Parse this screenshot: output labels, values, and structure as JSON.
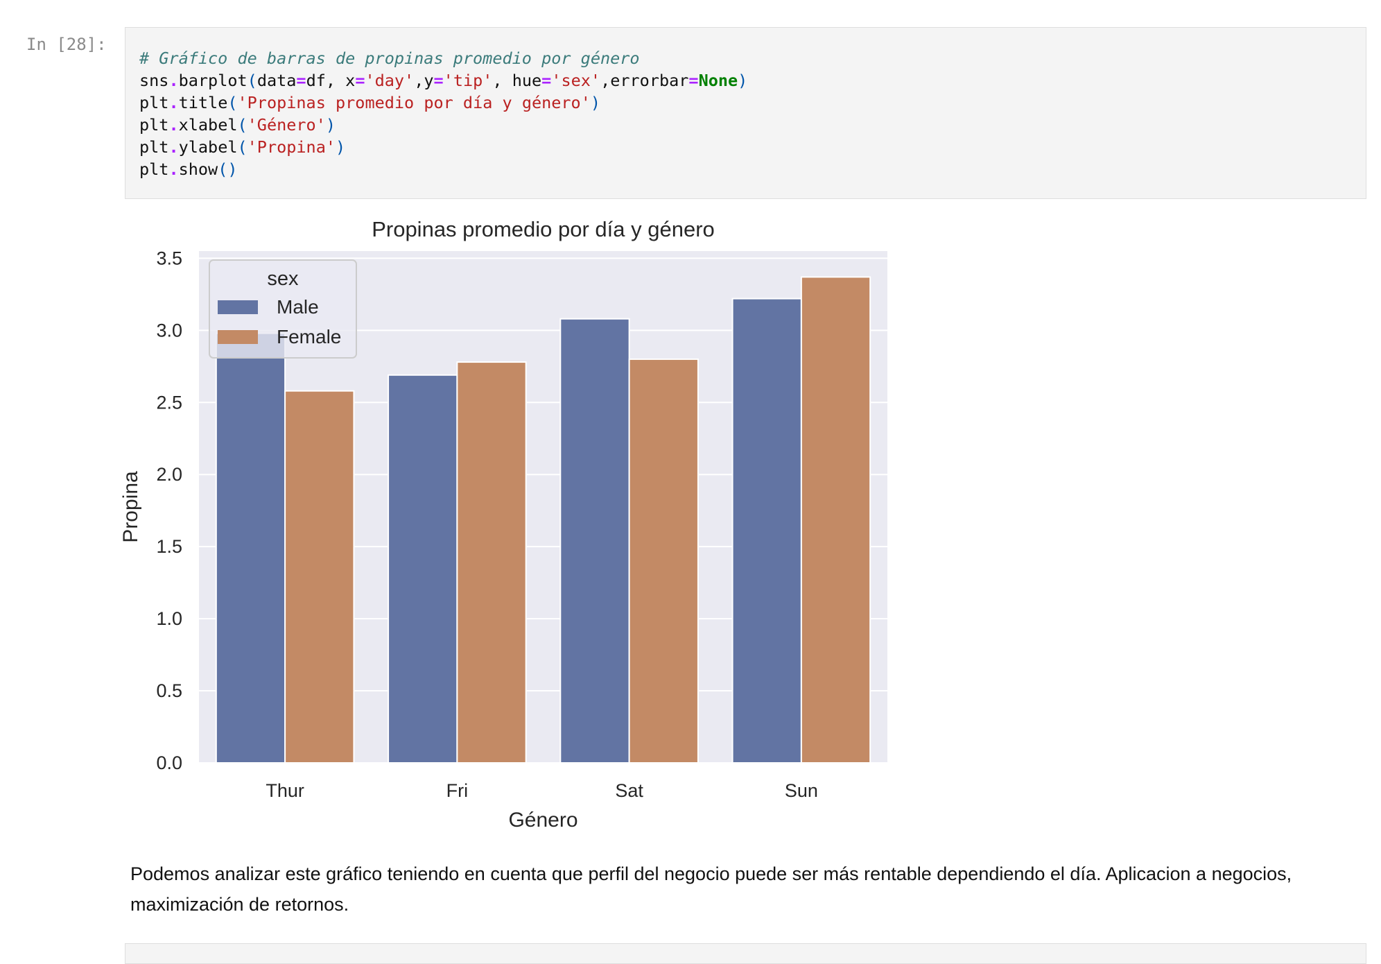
{
  "cell": {
    "prompt": "In [28]:",
    "code_lines": [
      [
        {
          "t": "# Gráfico de barras de propinas promedio por género",
          "c": "comment"
        }
      ],
      [
        {
          "t": "sns"
        },
        {
          "t": ".",
          "c": "op"
        },
        {
          "t": "barplot"
        },
        {
          "t": "(",
          "c": "paren"
        },
        {
          "t": "data"
        },
        {
          "t": "=",
          "c": "op"
        },
        {
          "t": "df, x"
        },
        {
          "t": "=",
          "c": "op"
        },
        {
          "t": "'day'",
          "c": "str"
        },
        {
          "t": ",y"
        },
        {
          "t": "=",
          "c": "op"
        },
        {
          "t": "'tip'",
          "c": "str"
        },
        {
          "t": ", hue"
        },
        {
          "t": "=",
          "c": "op"
        },
        {
          "t": "'sex'",
          "c": "str"
        },
        {
          "t": ",errorbar"
        },
        {
          "t": "=",
          "c": "op"
        },
        {
          "t": "None",
          "c": "kw"
        },
        {
          "t": ")",
          "c": "paren"
        }
      ],
      [
        {
          "t": "plt"
        },
        {
          "t": ".",
          "c": "op"
        },
        {
          "t": "title"
        },
        {
          "t": "(",
          "c": "paren"
        },
        {
          "t": "'Propinas promedio por día y género'",
          "c": "str"
        },
        {
          "t": ")",
          "c": "paren"
        }
      ],
      [
        {
          "t": "plt"
        },
        {
          "t": ".",
          "c": "op"
        },
        {
          "t": "xlabel"
        },
        {
          "t": "(",
          "c": "paren"
        },
        {
          "t": "'Género'",
          "c": "str"
        },
        {
          "t": ")",
          "c": "paren"
        }
      ],
      [
        {
          "t": "plt"
        },
        {
          "t": ".",
          "c": "op"
        },
        {
          "t": "ylabel"
        },
        {
          "t": "(",
          "c": "paren"
        },
        {
          "t": "'Propina'",
          "c": "str"
        },
        {
          "t": ")",
          "c": "paren"
        }
      ],
      [
        {
          "t": "plt"
        },
        {
          "t": ".",
          "c": "op"
        },
        {
          "t": "show"
        },
        {
          "t": "()",
          "c": "paren"
        }
      ]
    ]
  },
  "chart_data": {
    "type": "bar",
    "title": "Propinas promedio por día y género",
    "xlabel": "Género",
    "ylabel": "Propina",
    "categories": [
      "Thur",
      "Fri",
      "Sat",
      "Sun"
    ],
    "series": [
      {
        "name": "Male",
        "values": [
          2.98,
          2.69,
          3.08,
          3.22
        ],
        "color": "#6274a3"
      },
      {
        "name": "Female",
        "values": [
          2.58,
          2.78,
          2.8,
          3.37
        ],
        "color": "#c38a65"
      }
    ],
    "ylim": [
      0,
      3.55
    ],
    "yticks": [
      "0.0",
      "0.5",
      "1.0",
      "1.5",
      "2.0",
      "2.5",
      "3.0",
      "3.5"
    ],
    "grid": true,
    "legend": {
      "title": "sex",
      "placement": "top-left"
    }
  },
  "markdown": {
    "text": "Podemos analizar este gráfico teniendo en cuenta que perfil del negocio puede ser más rentable dependiendo el día. Aplicacion a negocios, maximización de retornos."
  }
}
